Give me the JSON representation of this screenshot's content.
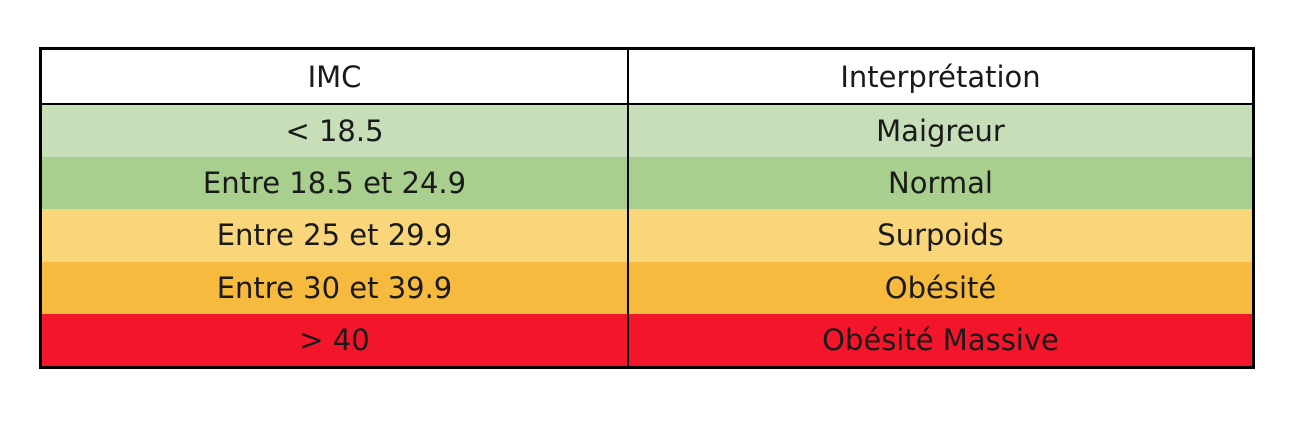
{
  "table": {
    "headers": {
      "imc": "IMC",
      "interpretation": "Interprétation"
    },
    "rows": [
      {
        "imc": "< 18.5",
        "interpretation": "Maigreur",
        "color": "#c6dfb9"
      },
      {
        "imc": "Entre 18.5 et 24.9",
        "interpretation": "Normal",
        "color": "#a9cf8f"
      },
      {
        "imc": "Entre 25 et 29.9",
        "interpretation": "Surpoids",
        "color": "#fad67b"
      },
      {
        "imc": "Entre 30 et 39.9",
        "interpretation": "Obésité",
        "color": "#f6ba3e"
      },
      {
        "imc": "> 40",
        "interpretation": "Obésité Massive",
        "color": "#f3162a"
      }
    ]
  }
}
